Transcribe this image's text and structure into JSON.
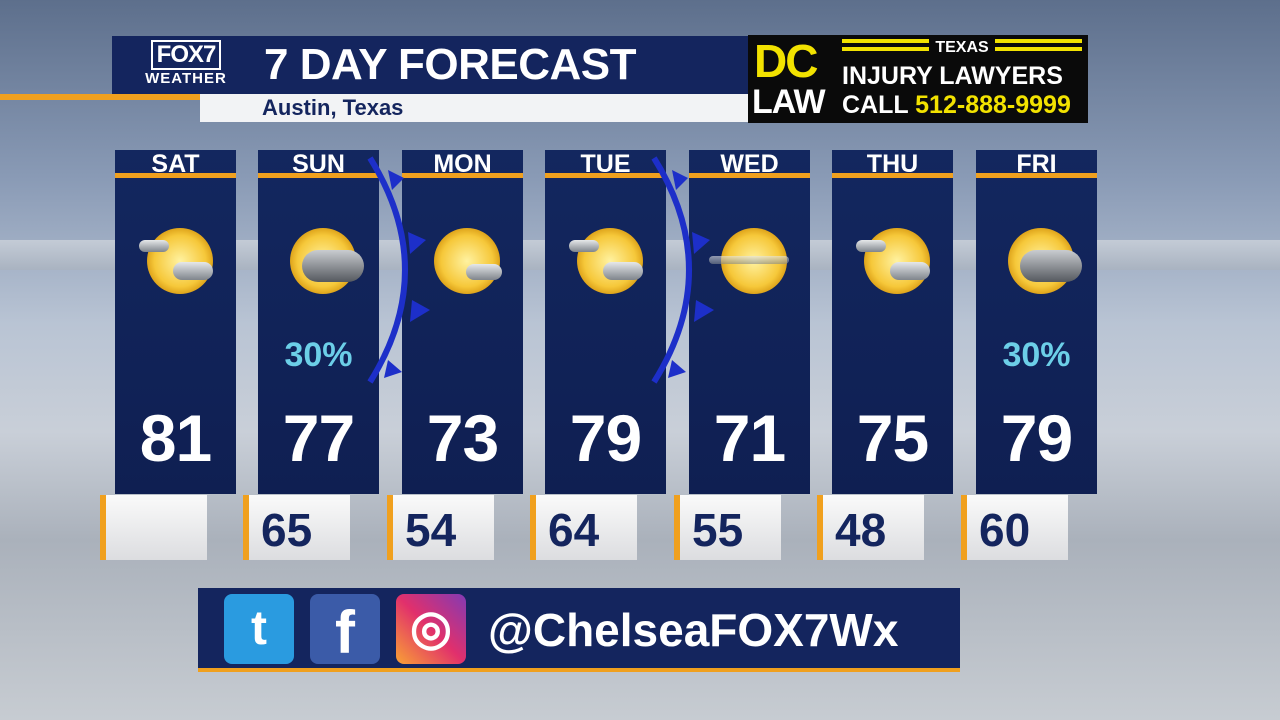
{
  "header": {
    "logo_top": "FOX7",
    "logo_bottom": "WEATHER",
    "title": "7 DAY FORECAST",
    "location": "Austin, Texas"
  },
  "ad": {
    "dc": "DC",
    "law": "LAW",
    "texas": "TEXAS",
    "line1": "INJURY LAWYERS",
    "call": "CALL",
    "phone": "512-888-9999"
  },
  "days": [
    {
      "day": "SAT",
      "icon": "partly-cloudy-icon",
      "pop": "",
      "high": "81",
      "low": ""
    },
    {
      "day": "SUN",
      "icon": "rain-cloud-sun-icon",
      "pop": "30%",
      "high": "77",
      "low": "65"
    },
    {
      "day": "MON",
      "icon": "mostly-sunny-icon",
      "pop": "",
      "high": "73",
      "low": "54"
    },
    {
      "day": "TUE",
      "icon": "partly-cloudy-icon",
      "pop": "",
      "high": "79",
      "low": "64"
    },
    {
      "day": "WED",
      "icon": "hazy-sun-icon",
      "pop": "",
      "high": "71",
      "low": "55"
    },
    {
      "day": "THU",
      "icon": "partly-cloudy-icon",
      "pop": "",
      "high": "75",
      "low": "48"
    },
    {
      "day": "FRI",
      "icon": "rain-cloud-sun-icon",
      "pop": "30%",
      "high": "79",
      "low": "60"
    }
  ],
  "social": {
    "twitter_icon": "t",
    "facebook_icon": "f",
    "instagram_icon": "◎",
    "handle": "@ChelseaFOX7Wx"
  },
  "colors": {
    "navy": "#14255e",
    "orange": "#f0a01e",
    "pop": "#6ccfe8",
    "front": "#1d2fc9"
  }
}
